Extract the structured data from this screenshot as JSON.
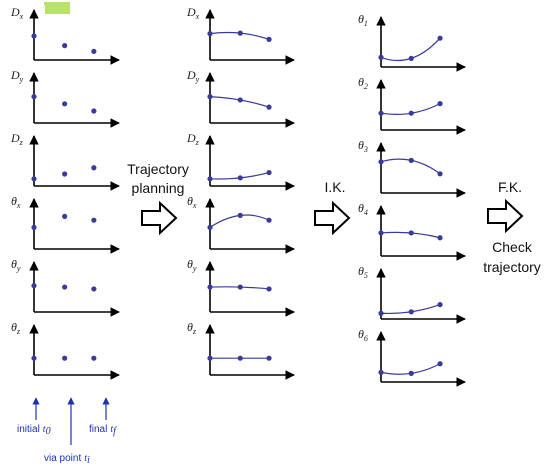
{
  "col1": {
    "rows": [
      {
        "sym": "D",
        "sub": "x",
        "pts": [
          0.5,
          0.3,
          0.18
        ]
      },
      {
        "sym": "D",
        "sub": "y",
        "pts": [
          0.55,
          0.4,
          0.25
        ]
      },
      {
        "sym": "D",
        "sub": "z",
        "pts": [
          0.15,
          0.25,
          0.38
        ]
      },
      {
        "sym": "θ",
        "sub": "x",
        "pts": [
          0.45,
          0.68,
          0.6
        ]
      },
      {
        "sym": "θ",
        "sub": "y",
        "pts": [
          0.55,
          0.52,
          0.48
        ]
      },
      {
        "sym": "θ",
        "sub": "z",
        "pts": [
          0.35,
          0.35,
          0.35
        ]
      }
    ]
  },
  "col2": {
    "rows": [
      {
        "sym": "D",
        "sub": "x",
        "pts": [
          0.55,
          0.56,
          0.43
        ]
      },
      {
        "sym": "D",
        "sub": "y",
        "pts": [
          0.55,
          0.48,
          0.33
        ]
      },
      {
        "sym": "D",
        "sub": "z",
        "pts": [
          0.15,
          0.17,
          0.28
        ]
      },
      {
        "sym": "θ",
        "sub": "x",
        "pts": [
          0.45,
          0.7,
          0.6
        ]
      },
      {
        "sym": "θ",
        "sub": "y",
        "pts": [
          0.52,
          0.52,
          0.48
        ]
      },
      {
        "sym": "θ",
        "sub": "z",
        "pts": [
          0.35,
          0.35,
          0.35
        ]
      }
    ]
  },
  "col3": {
    "rows": [
      {
        "sym": "θ",
        "sub": "1",
        "pts": [
          0.2,
          0.18,
          0.6
        ]
      },
      {
        "sym": "θ",
        "sub": "2",
        "pts": [
          0.35,
          0.35,
          0.55
        ]
      },
      {
        "sym": "θ",
        "sub": "3",
        "pts": [
          0.65,
          0.68,
          0.4
        ]
      },
      {
        "sym": "θ",
        "sub": "4",
        "pts": [
          0.48,
          0.48,
          0.38
        ]
      },
      {
        "sym": "θ",
        "sub": "5",
        "pts": [
          0.12,
          0.15,
          0.3
        ]
      },
      {
        "sym": "θ",
        "sub": "6",
        "pts": [
          0.2,
          0.18,
          0.38
        ]
      }
    ]
  },
  "stages": {
    "trajectory_line1": "Trajectory",
    "trajectory_line2": "planning",
    "ik": "I.K.",
    "fk": "F.K.",
    "check_line1": "Check",
    "check_line2": "trajectory"
  },
  "time_labels": {
    "initial": "initial",
    "initial_sub": "0",
    "final": "final",
    "final_sub": "f",
    "via": "via point",
    "via_sub": "i"
  },
  "colors": {
    "point": "#3a3a9a",
    "curve": "#3a3a9a",
    "axis": "#000000",
    "annotation": "#1a33b3",
    "logo": "#9acd32"
  }
}
